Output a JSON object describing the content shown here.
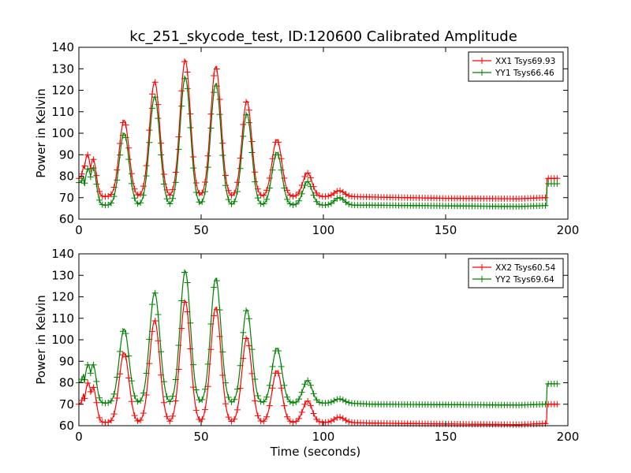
{
  "figure": {
    "title": "kc_251_skycode_test, ID:120600 Calibrated Amplitude"
  },
  "chart_data": [
    {
      "type": "line",
      "xlabel": "",
      "ylabel": "Power in Kelvin",
      "xlim": [
        0,
        200
      ],
      "ylim": [
        60,
        140
      ],
      "xticks": [
        "0",
        "50",
        "100",
        "150",
        "200"
      ],
      "yticks": [
        "60",
        "70",
        "80",
        "90",
        "100",
        "110",
        "120",
        "130",
        "140"
      ],
      "legend_position": "top-right",
      "grid": false,
      "series": [
        {
          "name": "XX1 Tsys69.93",
          "color": "#ff0000",
          "baseline": 70.5,
          "tail": [
            [
              120,
              70.3
            ],
            [
              150,
              69.7
            ],
            [
              180,
              69.5
            ],
            [
              190.5,
              70.0
            ]
          ],
          "start": [
            [
              0,
              79
            ],
            [
              1,
              80
            ],
            [
              2,
              85
            ]
          ],
          "peaks": [
            [
              3.5,
              90,
              1.4
            ],
            [
              5.8,
              88,
              1.3
            ],
            [
              18.5,
              106,
              2.0
            ],
            [
              31,
              124,
              2.1
            ],
            [
              43.5,
              134,
              2.1
            ],
            [
              56,
              131,
              2.1
            ],
            [
              68.7,
              115,
              2.0
            ],
            [
              81,
              97,
              2.0
            ],
            [
              93.5,
              81.5,
              1.9
            ],
            [
              106.5,
              73.3,
              2.0
            ]
          ],
          "end_level": 79,
          "end_x": [
            191.5,
            196
          ]
        },
        {
          "name": "YY1 Tsys66.46",
          "color": "#008000",
          "baseline": 66.5,
          "tail": [
            [
              120,
              66.5
            ],
            [
              150,
              66.2
            ],
            [
              180,
              65.9
            ],
            [
              190.5,
              66.3
            ]
          ],
          "start": [
            [
              0,
              77
            ],
            [
              1,
              77.5
            ],
            [
              2,
              80
            ]
          ],
          "peaks": [
            [
              3.8,
              83.5,
              1.4
            ],
            [
              5.8,
              84,
              1.3
            ],
            [
              18.5,
              100,
              2.0
            ],
            [
              31,
              117,
              2.1
            ],
            [
              43.5,
              126,
              2.1
            ],
            [
              56,
              123,
              2.1
            ],
            [
              68.7,
              109,
              2.0
            ],
            [
              81,
              91,
              2.0
            ],
            [
              93.5,
              77.5,
              1.9
            ],
            [
              106.5,
              70,
              2.0
            ]
          ],
          "end_level": 76.5,
          "end_x": [
            191.5,
            196
          ]
        }
      ]
    },
    {
      "type": "line",
      "xlabel": "Time (seconds)",
      "ylabel": "Power in Kelvin",
      "xlim": [
        0,
        200
      ],
      "ylim": [
        60,
        140
      ],
      "xticks": [
        "0",
        "50",
        "100",
        "150",
        "200"
      ],
      "yticks": [
        "60",
        "70",
        "80",
        "90",
        "100",
        "110",
        "120",
        "130",
        "140"
      ],
      "legend_position": "top-right",
      "grid": false,
      "series": [
        {
          "name": "XX2 Tsys60.54",
          "color": "#ff0000",
          "baseline": 61.5,
          "tail": [
            [
              120,
              61.2
            ],
            [
              150,
              60.8
            ],
            [
              180,
              60.5
            ],
            [
              190.5,
              61.0
            ]
          ],
          "start": [
            [
              0,
              70
            ],
            [
              1,
              71
            ],
            [
              2,
              75
            ]
          ],
          "peaks": [
            [
              3.8,
              80,
              1.4
            ],
            [
              5.8,
              78,
              1.3
            ],
            [
              18.5,
              94,
              2.0
            ],
            [
              31,
              109,
              2.1
            ],
            [
              43.5,
              118,
              2.1
            ],
            [
              56,
              115,
              2.1
            ],
            [
              68.7,
              101,
              2.0
            ],
            [
              81,
              85.5,
              2.0
            ],
            [
              93.5,
              71.5,
              1.9
            ],
            [
              106.5,
              64,
              2.0
            ]
          ],
          "end_level": 70,
          "end_x": [
            191.5,
            196
          ]
        },
        {
          "name": "YY2 Tsys69.64",
          "color": "#008000",
          "baseline": 70.5,
          "tail": [
            [
              120,
              70.0
            ],
            [
              150,
              69.8
            ],
            [
              180,
              69.6
            ],
            [
              190.5,
              70.0
            ]
          ],
          "start": [
            [
              0,
              80
            ],
            [
              1,
              81
            ],
            [
              2,
              84
            ]
          ],
          "peaks": [
            [
              3.8,
              88.5,
              1.4
            ],
            [
              5.8,
              88.5,
              1.3
            ],
            [
              18.5,
              105,
              2.0
            ],
            [
              31,
              122,
              2.1
            ],
            [
              43.5,
              132,
              2.1
            ],
            [
              56,
              128.5,
              2.1
            ],
            [
              68.7,
              114,
              2.0
            ],
            [
              81,
              96,
              2.0
            ],
            [
              93.5,
              81,
              1.9
            ],
            [
              106.5,
              72.5,
              2.0
            ]
          ],
          "end_level": 79.5,
          "end_x": [
            191.5,
            196
          ]
        }
      ]
    }
  ]
}
